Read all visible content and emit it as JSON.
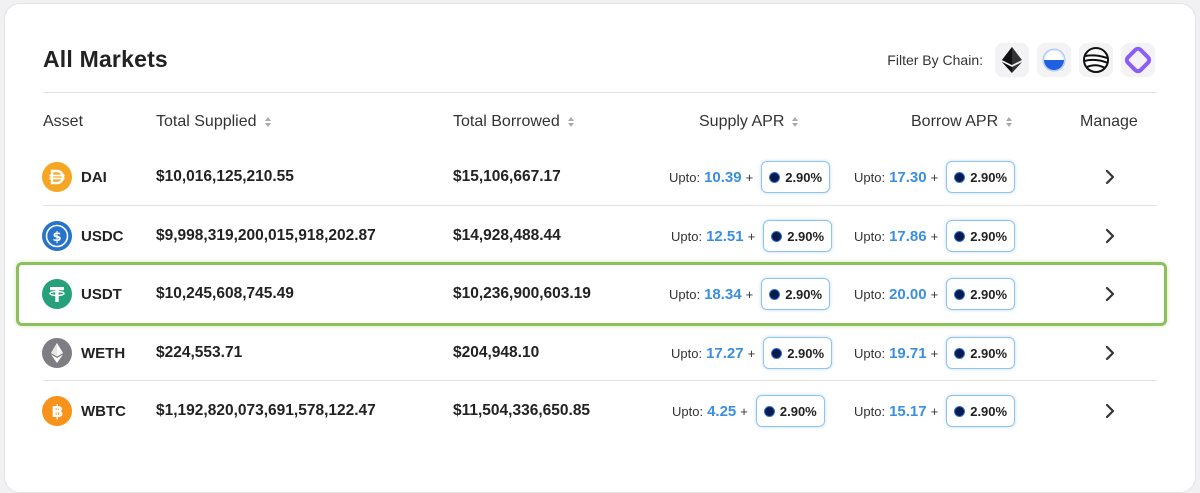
{
  "title": "All Markets",
  "filter": {
    "label": "Filter By Chain:",
    "chains": [
      {
        "icon": "ethereum-icon"
      },
      {
        "icon": "blue-circle-chain-icon"
      },
      {
        "icon": "striped-circle-chain-icon"
      },
      {
        "icon": "purple-square-chain-icon"
      }
    ]
  },
  "headers": {
    "asset": "Asset",
    "total_supplied": "Total Supplied",
    "total_borrowed": "Total Borrowed",
    "supply_apr": "Supply APR",
    "borrow_apr": "Borrow APR",
    "manage": "Manage"
  },
  "upto_label": "Upto:",
  "plus": "+",
  "rows": [
    {
      "symbol": "DAI",
      "icon": "dai-icon",
      "color": "#f5a623",
      "supplied": "$10,016,125,210.55",
      "borrowed": "$15,106,667.17",
      "supply_apr": "10.39",
      "supply_bonus": "2.90%",
      "borrow_apr": "17.30",
      "borrow_bonus": "2.90%"
    },
    {
      "symbol": "USDC",
      "icon": "usdc-icon",
      "color": "#2775ca",
      "supplied": "$9,998,319,200,015,918,202.87",
      "borrowed": "$14,928,488.44",
      "supply_apr": "12.51",
      "supply_bonus": "2.90%",
      "borrow_apr": "17.86",
      "borrow_bonus": "2.90%"
    },
    {
      "symbol": "USDT",
      "icon": "usdt-icon",
      "color": "#26a17b",
      "supplied": "$10,245,608,745.49",
      "borrowed": "$10,236,900,603.19",
      "supply_apr": "18.34",
      "supply_bonus": "2.90%",
      "borrow_apr": "20.00",
      "borrow_bonus": "2.90%"
    },
    {
      "symbol": "WETH",
      "icon": "weth-icon",
      "color": "#7d7d83",
      "supplied": "$224,553.71",
      "borrowed": "$204,948.10",
      "supply_apr": "17.27",
      "supply_bonus": "2.90%",
      "borrow_apr": "19.71",
      "borrow_bonus": "2.90%"
    },
    {
      "symbol": "WBTC",
      "icon": "wbtc-icon",
      "color": "#f7931a",
      "supplied": "$1,192,820,073,691,578,122.47",
      "borrowed": "$11,504,336,650.85",
      "supply_apr": "4.25",
      "supply_bonus": "2.90%",
      "borrow_apr": "15.17",
      "borrow_bonus": "2.90%"
    }
  ],
  "highlight_color": "#8cc05d",
  "apr_color": "#3b8fe0"
}
